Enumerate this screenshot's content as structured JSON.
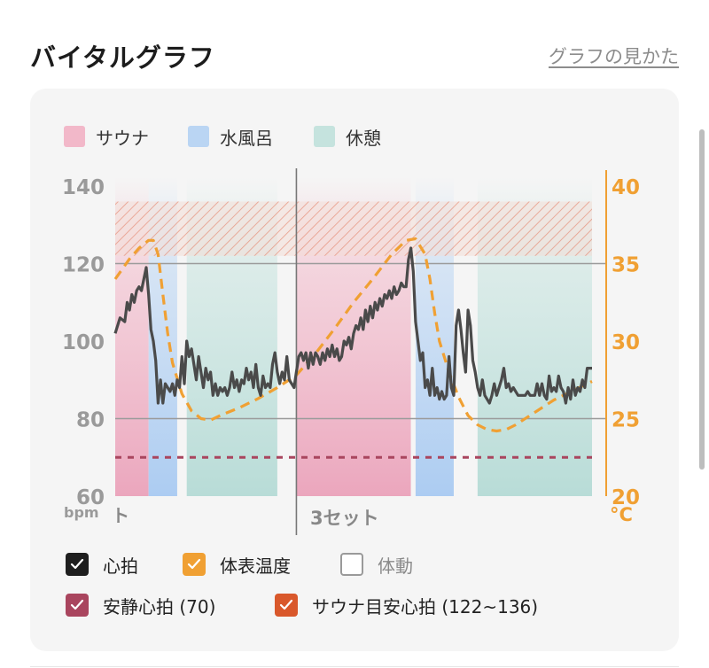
{
  "header": {
    "title": "バイタルグラフ",
    "howto_link": "グラフの見かた"
  },
  "legend": [
    {
      "label": "サウナ",
      "color": "#f2b8c9"
    },
    {
      "label": "水風呂",
      "color": "#bad5f3"
    },
    {
      "label": "休憩",
      "color": "#c5e3de"
    }
  ],
  "chart_data": {
    "type": "line",
    "phases": [
      {
        "type": "sauna",
        "start": 0,
        "end": 7
      },
      {
        "type": "cold",
        "start": 7,
        "end": 13
      },
      {
        "type": "rest",
        "start": 15,
        "end": 34
      },
      {
        "type": "sauna",
        "start": 38,
        "end": 62
      },
      {
        "type": "cold",
        "start": 63,
        "end": 71
      },
      {
        "type": "rest",
        "start": 76,
        "end": 100
      }
    ],
    "set_label": "3セット",
    "prev_set_label": "ト",
    "set_marker_x": 38,
    "y_left": {
      "unit": "bpm",
      "min": 60,
      "max": 140,
      "ticks": [
        140,
        120,
        100,
        80,
        60
      ]
    },
    "y_right": {
      "unit": "°C",
      "min": 20,
      "max": 40,
      "ticks": [
        40,
        35,
        30,
        25,
        20
      ]
    },
    "gridlines_bpm": [
      120,
      80
    ],
    "resting_hr": 70,
    "sauna_target": [
      122,
      136
    ],
    "heart_rate": [
      [
        0,
        102
      ],
      [
        1,
        106
      ],
      [
        2,
        105
      ],
      [
        2.5,
        110
      ],
      [
        3,
        108
      ],
      [
        3.5,
        112
      ],
      [
        4,
        110
      ],
      [
        4.5,
        113
      ],
      [
        5,
        114
      ],
      [
        5.5,
        113
      ],
      [
        6,
        116
      ],
      [
        6.5,
        119
      ],
      [
        7,
        112
      ],
      [
        7.5,
        103
      ],
      [
        8,
        100
      ],
      [
        8.5,
        95
      ],
      [
        9,
        84
      ],
      [
        9.5,
        90
      ],
      [
        10,
        84
      ],
      [
        10.5,
        89
      ],
      [
        11,
        88
      ],
      [
        11.5,
        87
      ],
      [
        12,
        89
      ],
      [
        12.5,
        86
      ],
      [
        13,
        90
      ],
      [
        13.5,
        88
      ],
      [
        14,
        96
      ],
      [
        14.5,
        89
      ],
      [
        15,
        100
      ],
      [
        15.5,
        96
      ],
      [
        16,
        98
      ],
      [
        16.5,
        94
      ],
      [
        17,
        90
      ],
      [
        17.5,
        96
      ],
      [
        18,
        92
      ],
      [
        18.5,
        88
      ],
      [
        19,
        93
      ],
      [
        19.5,
        90
      ],
      [
        20,
        92
      ],
      [
        20.5,
        86
      ],
      [
        21,
        89
      ],
      [
        21.5,
        86
      ],
      [
        22,
        88
      ],
      [
        22.5,
        87
      ],
      [
        23,
        88
      ],
      [
        23.5,
        86
      ],
      [
        24,
        88
      ],
      [
        24.5,
        92
      ],
      [
        25,
        88
      ],
      [
        25.5,
        90
      ],
      [
        26,
        87
      ],
      [
        26.5,
        90
      ],
      [
        27,
        89
      ],
      [
        27.5,
        93
      ],
      [
        28,
        90
      ],
      [
        28.5,
        92
      ],
      [
        29,
        88
      ],
      [
        29.5,
        94
      ],
      [
        30,
        88
      ],
      [
        30.5,
        86
      ],
      [
        31,
        91
      ],
      [
        31.5,
        88
      ],
      [
        32,
        89
      ],
      [
        32.5,
        88
      ],
      [
        33,
        94
      ],
      [
        33.5,
        97
      ],
      [
        34,
        92
      ],
      [
        34.5,
        89
      ],
      [
        35,
        92
      ],
      [
        35.5,
        90
      ],
      [
        36,
        96
      ],
      [
        36.5,
        90
      ],
      [
        37,
        89
      ],
      [
        37.5,
        88
      ],
      [
        38,
        92
      ],
      [
        38.5,
        96
      ],
      [
        39,
        97
      ],
      [
        39.5,
        95
      ],
      [
        40,
        97
      ],
      [
        40.5,
        93
      ],
      [
        41,
        97
      ],
      [
        41.5,
        94
      ],
      [
        42,
        97
      ],
      [
        42.5,
        96
      ],
      [
        43,
        94
      ],
      [
        43.5,
        97
      ],
      [
        44,
        95
      ],
      [
        44.5,
        98
      ],
      [
        45,
        96
      ],
      [
        45.5,
        99
      ],
      [
        46,
        96
      ],
      [
        46.5,
        98
      ],
      [
        47,
        95
      ],
      [
        47.5,
        96
      ],
      [
        48,
        100
      ],
      [
        48.5,
        99
      ],
      [
        49,
        101
      ],
      [
        49.5,
        98
      ],
      [
        50,
        102
      ],
      [
        50.5,
        104
      ],
      [
        51,
        103
      ],
      [
        51.5,
        106
      ],
      [
        52,
        103
      ],
      [
        52.5,
        108
      ],
      [
        53,
        105
      ],
      [
        53.5,
        109
      ],
      [
        54,
        106
      ],
      [
        54.5,
        110
      ],
      [
        55,
        108
      ],
      [
        55.5,
        111
      ],
      [
        56,
        109
      ],
      [
        56.5,
        112
      ],
      [
        57,
        111
      ],
      [
        57.5,
        113
      ],
      [
        58,
        111
      ],
      [
        58.5,
        114
      ],
      [
        59,
        112
      ],
      [
        59.5,
        113
      ],
      [
        60,
        115
      ],
      [
        60.5,
        114
      ],
      [
        61,
        114
      ],
      [
        61.5,
        121
      ],
      [
        62,
        124
      ],
      [
        62.5,
        118
      ],
      [
        63,
        105
      ],
      [
        63.5,
        100
      ],
      [
        64,
        95
      ],
      [
        64.5,
        97
      ],
      [
        65,
        88
      ],
      [
        65.5,
        90
      ],
      [
        66,
        86
      ],
      [
        66.5,
        93
      ],
      [
        67,
        86
      ],
      [
        67.5,
        88
      ],
      [
        68,
        85
      ],
      [
        68.5,
        87
      ],
      [
        69,
        85
      ],
      [
        69.5,
        86
      ],
      [
        70,
        96
      ],
      [
        70.5,
        88
      ],
      [
        71,
        86
      ],
      [
        71.5,
        104
      ],
      [
        72,
        108
      ],
      [
        72.5,
        103
      ],
      [
        73,
        97
      ],
      [
        73.5,
        92
      ],
      [
        74,
        108
      ],
      [
        74.5,
        104
      ],
      [
        75,
        95
      ],
      [
        75.5,
        92
      ],
      [
        76,
        88
      ],
      [
        76.5,
        86
      ],
      [
        77,
        90
      ],
      [
        77.5,
        86
      ],
      [
        78,
        85
      ],
      [
        78.5,
        84
      ],
      [
        79,
        86
      ],
      [
        79.5,
        89
      ],
      [
        80,
        86
      ],
      [
        80.5,
        88
      ],
      [
        81,
        90
      ],
      [
        81.5,
        93
      ],
      [
        82,
        88
      ],
      [
        82.5,
        89
      ],
      [
        83,
        87
      ],
      [
        83.5,
        88
      ],
      [
        84,
        87
      ],
      [
        84.5,
        86
      ],
      [
        85,
        86
      ],
      [
        85.5,
        86
      ],
      [
        86,
        86
      ],
      [
        86.5,
        87
      ],
      [
        87,
        86
      ],
      [
        87.5,
        86
      ],
      [
        88,
        86
      ],
      [
        88.5,
        89
      ],
      [
        89,
        86
      ],
      [
        89.5,
        89
      ],
      [
        90,
        86
      ],
      [
        90.5,
        85
      ],
      [
        91,
        91
      ],
      [
        91.5,
        87
      ],
      [
        92,
        88
      ],
      [
        92.5,
        87
      ],
      [
        93,
        91
      ],
      [
        93.5,
        88
      ],
      [
        94,
        87
      ],
      [
        94.5,
        84
      ],
      [
        95,
        88
      ],
      [
        95.5,
        85
      ],
      [
        96,
        90
      ],
      [
        96.5,
        86
      ],
      [
        97,
        88
      ],
      [
        97.5,
        87
      ],
      [
        98,
        90
      ],
      [
        98.5,
        88
      ],
      [
        99,
        93
      ],
      [
        100,
        93
      ]
    ],
    "body_temp": [
      [
        0,
        34.0
      ],
      [
        3,
        35.3
      ],
      [
        5,
        36.0
      ],
      [
        7,
        36.5
      ],
      [
        8,
        36.5
      ],
      [
        9,
        35.6
      ],
      [
        10,
        33.0
      ],
      [
        11,
        30.5
      ],
      [
        12,
        28.6
      ],
      [
        13,
        27.6
      ],
      [
        14,
        26.6
      ],
      [
        16,
        25.5
      ],
      [
        18,
        25.0
      ],
      [
        20,
        24.9
      ],
      [
        22,
        25.2
      ],
      [
        26,
        25.7
      ],
      [
        30,
        26.3
      ],
      [
        34,
        27.0
      ],
      [
        38,
        27.8
      ],
      [
        42,
        29.2
      ],
      [
        46,
        30.8
      ],
      [
        50,
        32.5
      ],
      [
        54,
        34.0
      ],
      [
        58,
        35.6
      ],
      [
        61,
        36.5
      ],
      [
        63,
        36.6
      ],
      [
        65,
        35.6
      ],
      [
        66,
        34.0
      ],
      [
        67,
        31.8
      ],
      [
        68,
        30.0
      ],
      [
        70,
        28.0
      ],
      [
        72,
        26.4
      ],
      [
        74,
        25.2
      ],
      [
        76,
        24.6
      ],
      [
        78,
        24.3
      ],
      [
        80,
        24.2
      ],
      [
        82,
        24.3
      ],
      [
        84,
        24.6
      ],
      [
        88,
        25.4
      ],
      [
        92,
        26.2
      ],
      [
        96,
        26.8
      ],
      [
        100,
        27.4
      ]
    ]
  },
  "toggles": [
    {
      "label": "心拍",
      "color": "#1e1e1e",
      "checked": true
    },
    {
      "label": "体表温度",
      "color": "#f0a033",
      "checked": true
    },
    {
      "label": "体動",
      "color": "#9a9a9a",
      "checked": false
    },
    {
      "label": "安静心拍 (70)",
      "color": "#a9455e",
      "checked": true
    },
    {
      "label": "サウナ目安心拍 (122~136)",
      "color": "#d9582b",
      "checked": true
    }
  ],
  "colors": {
    "sauna": "#f2b8c9",
    "cold": "#bad5f3",
    "rest": "#c5e3de",
    "hr_line": "#4a4a4a",
    "temp_line": "#f0a033",
    "resting": "#a9455e",
    "target": "#e4836a",
    "axis_left": "#9a9a9a",
    "axis_right": "#f0a033"
  }
}
